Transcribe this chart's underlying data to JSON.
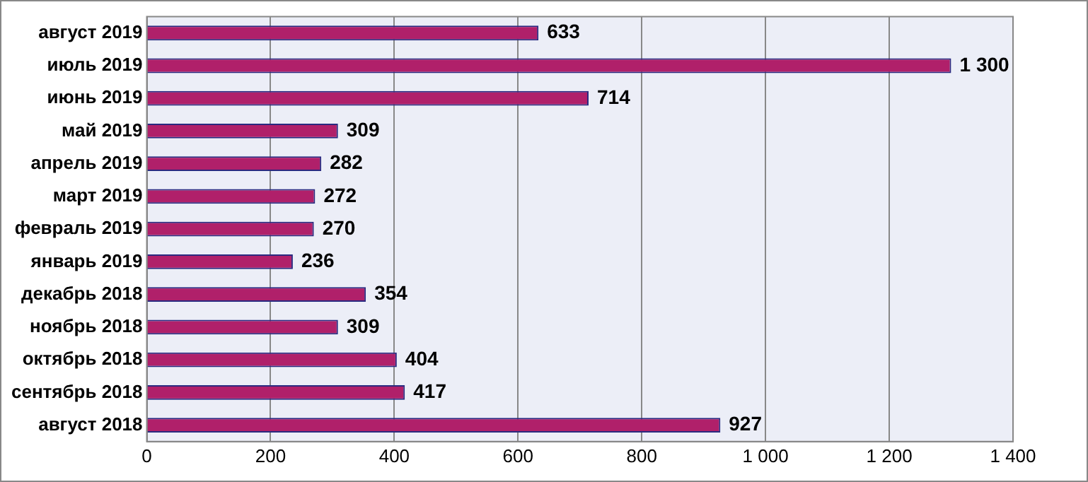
{
  "chart_data": {
    "type": "bar",
    "orientation": "horizontal",
    "categories": [
      "август 2019",
      "июль 2019",
      "июнь 2019",
      "май 2019",
      "апрель 2019",
      "март 2019",
      "февраль 2019",
      "январь 2019",
      "декабрь 2018",
      "ноябрь 2018",
      "октябрь 2018",
      "сентябрь 2018",
      "август 2018"
    ],
    "values": [
      633,
      1300,
      714,
      309,
      282,
      272,
      270,
      236,
      354,
      309,
      404,
      417,
      927
    ],
    "value_labels": [
      "633",
      "1 300",
      "714",
      "309",
      "282",
      "272",
      "270",
      "236",
      "354",
      "309",
      "404",
      "417",
      "927"
    ],
    "color": "#b0206a",
    "xlim": [
      0,
      1400
    ],
    "xticks": [
      0,
      200,
      400,
      600,
      800,
      {
        "value": 1000,
        "label": "1 000"
      },
      {
        "value": 1200,
        "label": "1 200"
      },
      {
        "value": 1400,
        "label": "1 400"
      }
    ],
    "grid": "x",
    "legend": false
  }
}
